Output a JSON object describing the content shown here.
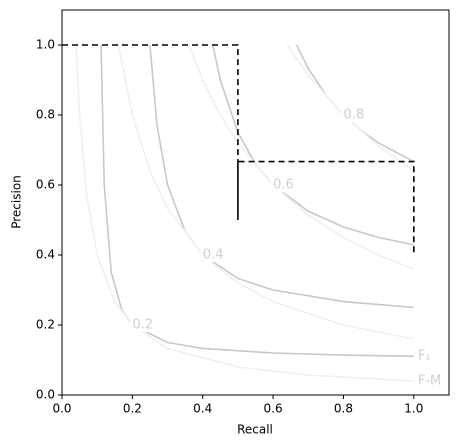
{
  "chart_data": {
    "type": "line",
    "xlabel": "Recall",
    "ylabel": "Precision",
    "xlim": [
      0,
      1.1
    ],
    "ylim": [
      0,
      1.1
    ],
    "xticks": [
      {
        "value": 0,
        "label": "0.0"
      },
      0.2,
      0.4,
      0.6,
      0.8,
      {
        "value": 1,
        "label": "1.0"
      }
    ],
    "yticks": [
      {
        "value": 0,
        "label": "0.0"
      },
      0.2,
      0.4,
      0.6,
      0.8,
      {
        "value": 1,
        "label": "1.0"
      }
    ],
    "grid": false,
    "series": [
      {
        "label": "0.2",
        "color": "#c8c8c8",
        "x": [
          0.1111,
          0.12,
          0.14,
          0.17,
          0.2,
          0.3,
          0.4,
          0.6,
          0.8,
          1.0
        ],
        "values": [
          1.0,
          0.6,
          0.35,
          0.243,
          0.2,
          0.15,
          0.133,
          0.12,
          0.114,
          0.111
        ]
      },
      {
        "label": "0.4",
        "color": "#c8c8c8",
        "x": [
          0.25,
          0.27,
          0.3,
          0.35,
          0.4,
          0.5,
          0.6,
          0.8,
          1.0
        ],
        "values": [
          1.0,
          0.771,
          0.6,
          0.467,
          0.4,
          0.333,
          0.3,
          0.267,
          0.25
        ]
      },
      {
        "label": "0.6",
        "color": "#c8c8c8",
        "x": [
          0.4286,
          0.45,
          0.5,
          0.55,
          0.6,
          0.7,
          0.8,
          0.9,
          1.0
        ],
        "values": [
          1.0,
          0.9,
          0.75,
          0.66,
          0.6,
          0.525,
          0.48,
          0.45,
          0.429
        ]
      },
      {
        "label": "0.8",
        "color": "#c8c8c8",
        "x": [
          0.6667,
          0.7,
          0.75,
          0.8,
          0.85,
          0.9,
          1.0
        ],
        "values": [
          1.0,
          0.933,
          0.857,
          0.8,
          0.756,
          0.72,
          0.667
        ]
      },
      {
        "color": "#f0f0f0",
        "x": [
          0.04,
          0.05,
          0.07,
          0.1,
          0.15,
          0.2,
          0.3,
          0.5,
          0.7,
          1.0
        ],
        "values": [
          1.0,
          0.8,
          0.571,
          0.4,
          0.267,
          0.2,
          0.133,
          0.08,
          0.057,
          0.04
        ]
      },
      {
        "color": "#f0f0f0",
        "x": [
          0.16,
          0.2,
          0.25,
          0.3,
          0.4,
          0.5,
          0.6,
          0.8,
          1.0
        ],
        "values": [
          1.0,
          0.8,
          0.64,
          0.533,
          0.4,
          0.32,
          0.267,
          0.2,
          0.16
        ]
      },
      {
        "color": "#f0f0f0",
        "x": [
          0.36,
          0.4,
          0.45,
          0.5,
          0.6,
          0.7,
          0.8,
          0.9,
          1.0
        ],
        "values": [
          1.0,
          0.9,
          0.8,
          0.72,
          0.6,
          0.514,
          0.45,
          0.4,
          0.36
        ]
      },
      {
        "color": "#f0f0f0",
        "x": [
          0.64,
          0.7,
          0.8,
          0.9,
          1.0
        ],
        "values": [
          1.0,
          0.914,
          0.8,
          0.711,
          0.64
        ]
      }
    ],
    "f1_label": "F₁",
    "fm_label": "F-M",
    "pr_curve": {
      "color": "#000000",
      "x": [
        0,
        0.5,
        0.5,
        0.5,
        1.0,
        1.0
      ],
      "values": [
        1.0,
        1.0,
        0.5,
        0.667,
        0.667,
        0.4
      ]
    }
  }
}
